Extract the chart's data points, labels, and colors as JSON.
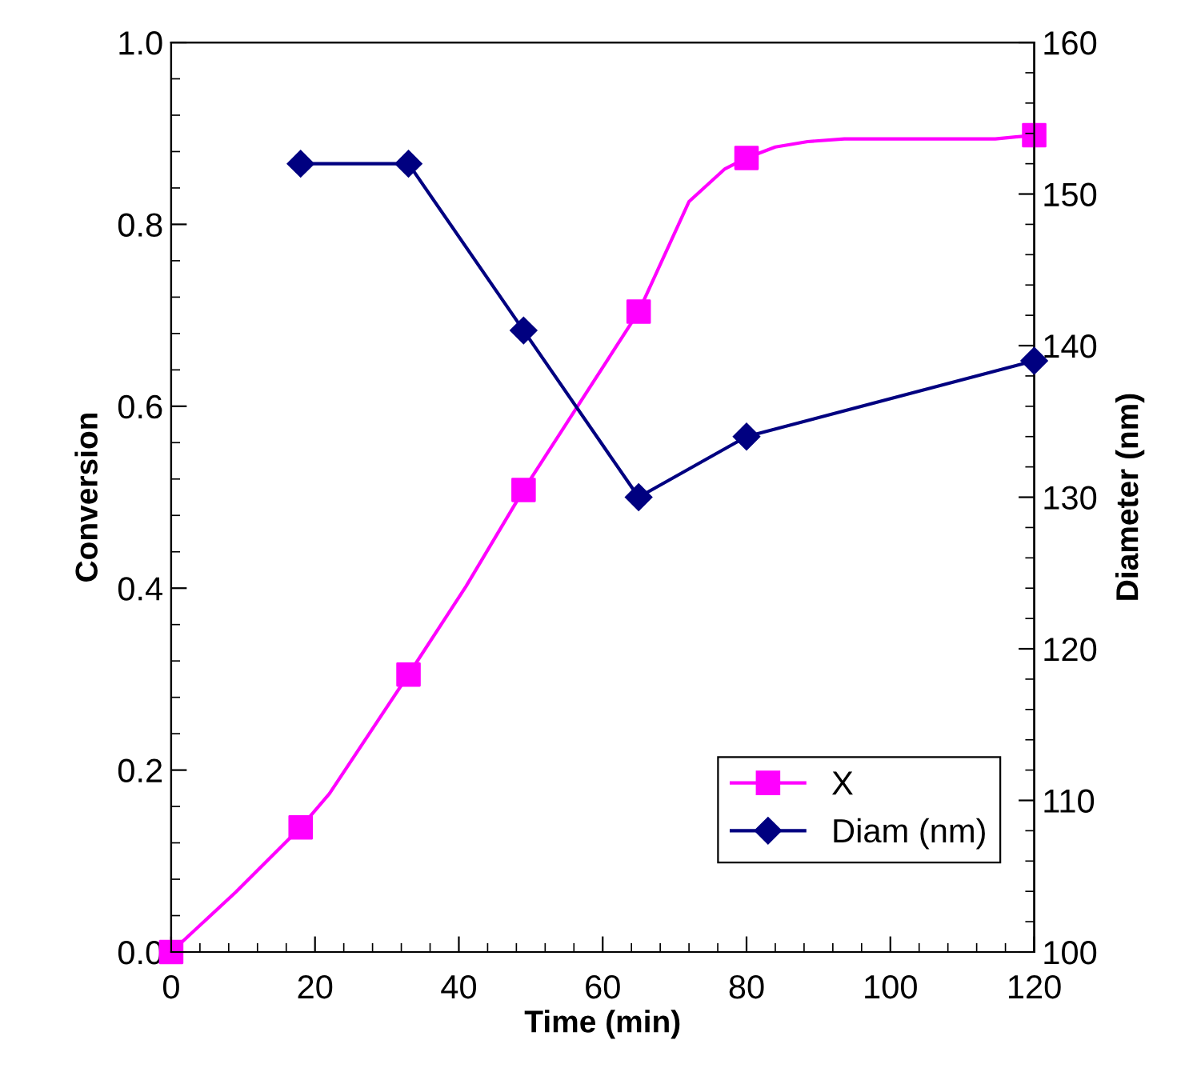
{
  "chart_data": {
    "type": "line",
    "xlabel": "Time (min)",
    "ylabel": "Conversion",
    "y2label": "Diameter (nm)",
    "xlim": [
      0,
      120
    ],
    "xticks": [
      0,
      20,
      40,
      60,
      80,
      100,
      120
    ],
    "ylim": [
      0,
      1.0
    ],
    "yticks": [
      {
        "value": 0,
        "label": "0.0"
      },
      0.2,
      0.4,
      0.6,
      0.8,
      {
        "value": 1.0,
        "label": "1.0"
      }
    ],
    "y2lim": [
      100,
      160
    ],
    "y2ticks": [
      100,
      110,
      120,
      130,
      140,
      150,
      160
    ],
    "grid": false,
    "legend": "bottom right",
    "line_style": "solid",
    "series": [
      {
        "color": "#ff00ff",
        "marker": "none",
        "x": [
          0,
          9,
          18,
          22,
          33,
          41,
          49,
          65,
          72,
          77,
          80,
          84,
          88.5,
          93.6,
          114.6,
          120
        ],
        "values": [
          0,
          0.066,
          0.137,
          0.174,
          0.305,
          0.402,
          0.508,
          0.704,
          0.825,
          0.861,
          0.873,
          0.885,
          0.891,
          0.894,
          0.894,
          0.898
        ]
      },
      {
        "type": "scatter",
        "name": "X",
        "color": "#ff00ff",
        "marker": "square",
        "x": [
          0,
          18,
          33,
          49,
          65,
          80,
          120
        ],
        "values": [
          0,
          0.137,
          0.305,
          0.508,
          0.704,
          0.873,
          0.898
        ]
      },
      {
        "type": "line",
        "name": "Diam (nm)",
        "color": "#000080",
        "marker": "diamond",
        "axis": "y2",
        "x": [
          18,
          33,
          49,
          65,
          80,
          120
        ],
        "values": [
          152,
          152,
          141,
          130,
          134,
          139
        ]
      }
    ]
  }
}
